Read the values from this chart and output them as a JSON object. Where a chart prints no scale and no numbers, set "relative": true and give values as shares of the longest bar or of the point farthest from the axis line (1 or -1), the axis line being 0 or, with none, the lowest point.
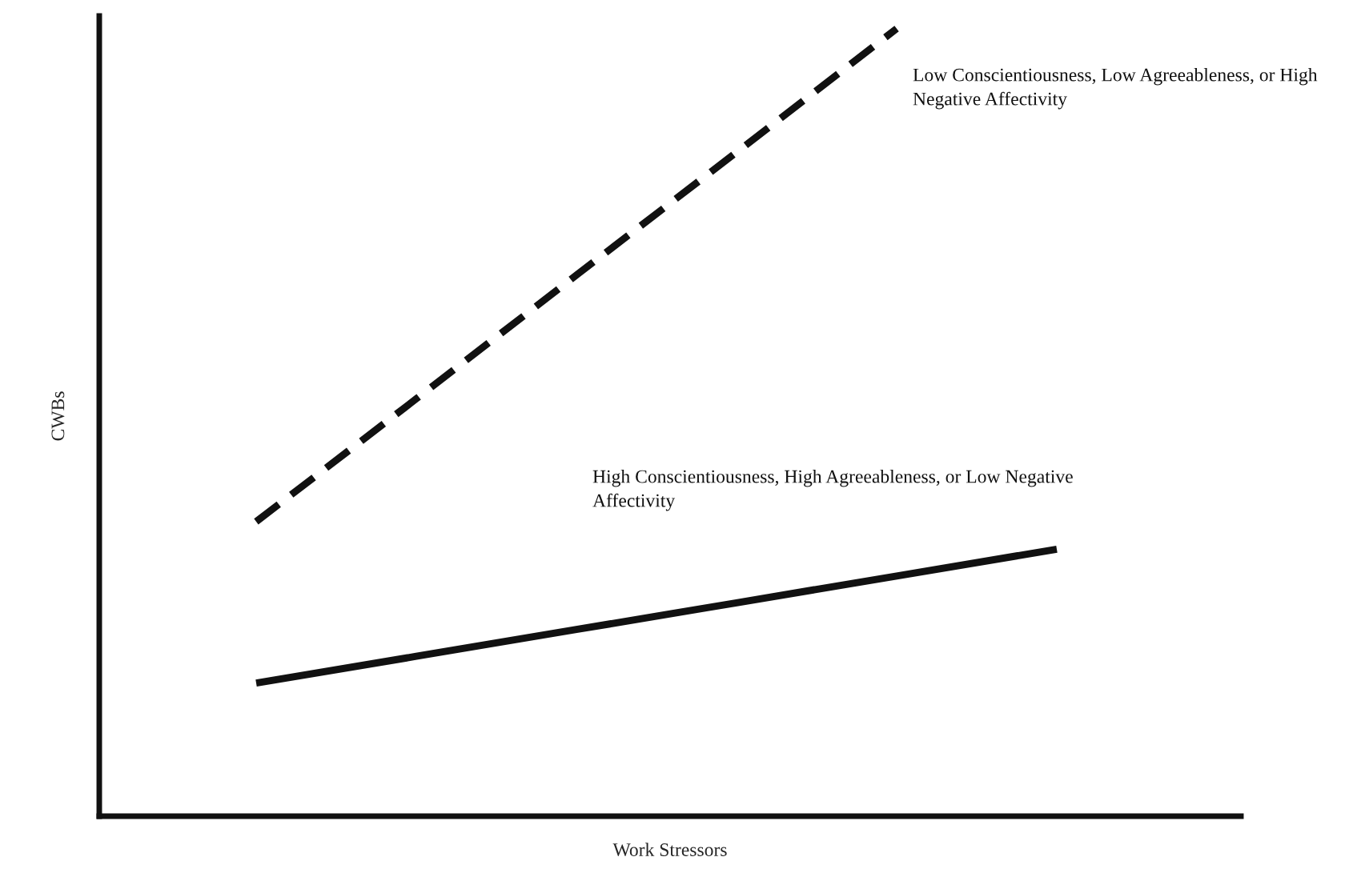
{
  "chart_data": {
    "type": "line",
    "relative": true,
    "xlabel": "Work Stressors",
    "ylabel": "CWBs",
    "categories": [
      null,
      null,
      null,
      null,
      null,
      null
    ],
    "series": [
      {
        "name": "Low Conscientiousness, Low Agreeableness, or High Negative Affectivity",
        "color": "#111111",
        "line_style": "dashed",
        "values": [
          0.374,
          0.53,
          0.687,
          0.843,
          1.0,
          null
        ]
      },
      {
        "name": "High Conscientiousness, High Agreeableness, or Low Negative Affectivity",
        "color": "#111111",
        "line_style": "solid",
        "values": [
          0.169,
          0.203,
          0.237,
          0.271,
          0.305,
          0.339
        ]
      }
    ],
    "legend": false,
    "marker": "none"
  }
}
